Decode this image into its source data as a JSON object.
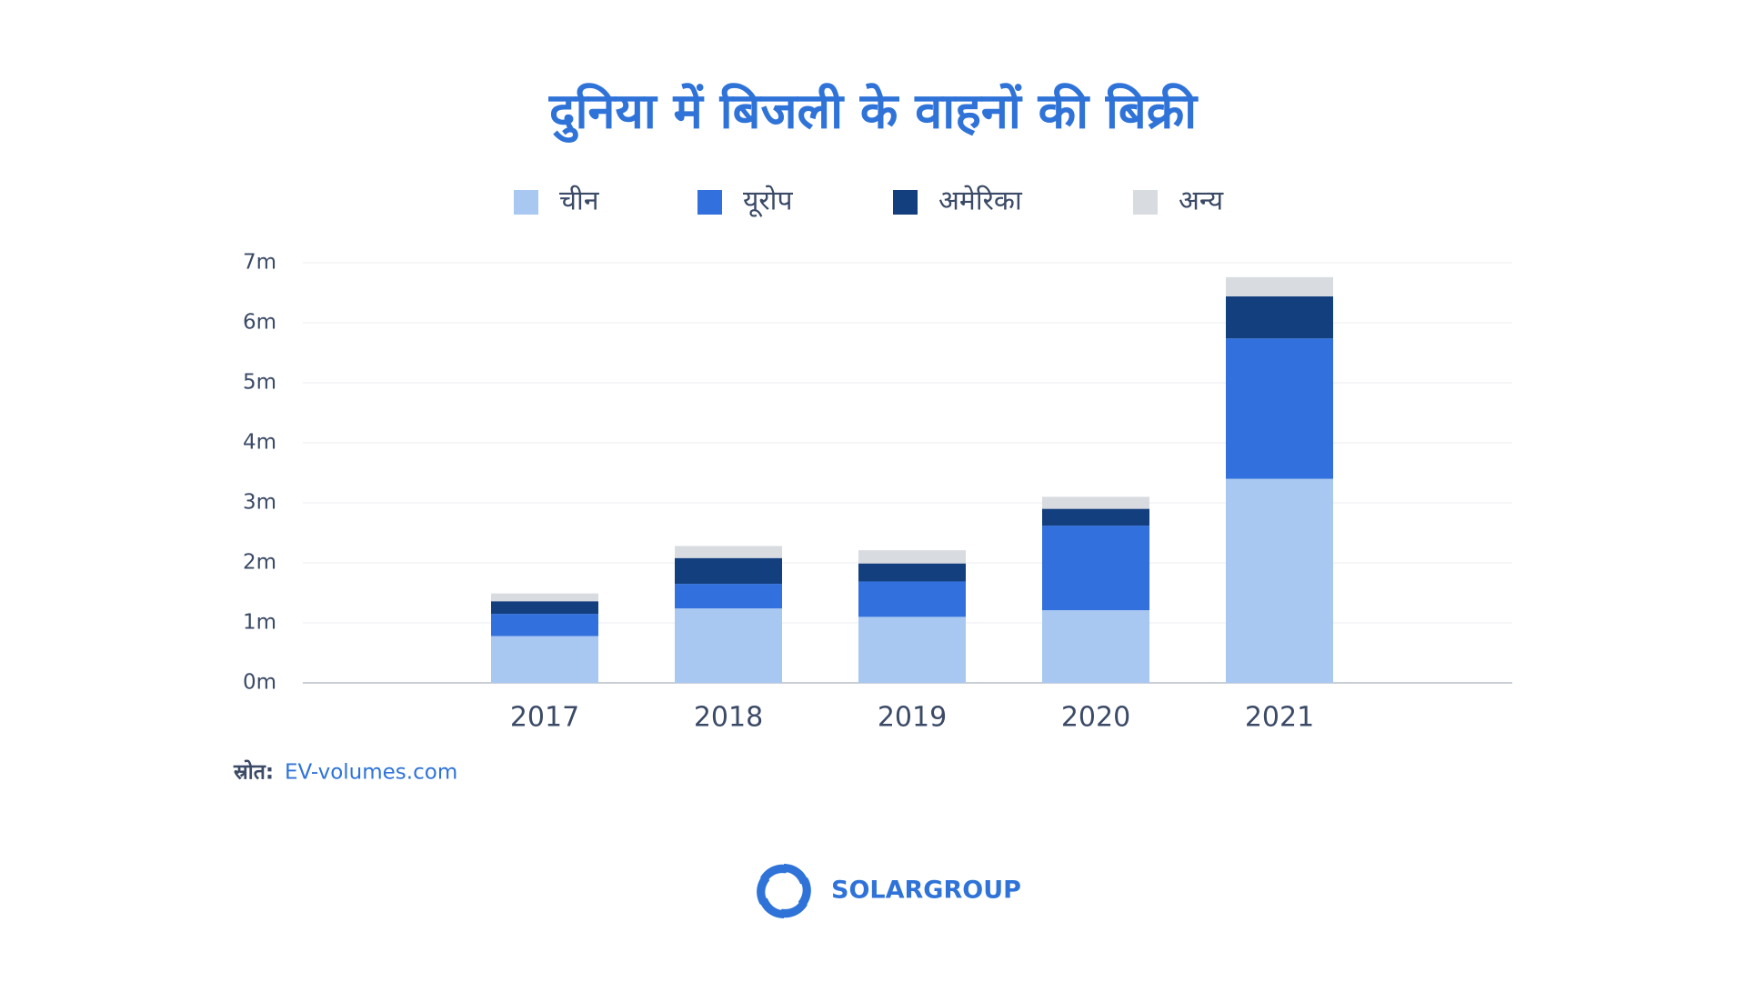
{
  "chart_data": {
    "type": "bar",
    "stacked": true,
    "title": "दुनिया में बिजली के वाहनों की बिक्री",
    "categories": [
      "2017",
      "2018",
      "2019",
      "2020",
      "2021"
    ],
    "series": [
      {
        "name": "चीन",
        "color": "#a8c8f2",
        "values": [
          0.78,
          1.24,
          1.1,
          1.21,
          3.4
        ]
      },
      {
        "name": "यूरोप",
        "color": "#3170dd",
        "values": [
          0.37,
          0.41,
          0.59,
          1.41,
          2.34
        ]
      },
      {
        "name": "अमेरिका",
        "color": "#143f7e",
        "values": [
          0.21,
          0.43,
          0.3,
          0.28,
          0.7
        ]
      },
      {
        "name": "अन्य",
        "color": "#d8dbe0",
        "values": [
          0.13,
          0.2,
          0.22,
          0.2,
          0.32
        ]
      }
    ],
    "ylim": [
      0,
      7
    ],
    "yticks": [
      {
        "value": 0,
        "label": "0m"
      },
      {
        "value": 1,
        "label": "1m"
      },
      {
        "value": 2,
        "label": "2m"
      },
      {
        "value": 3,
        "label": "3m"
      },
      {
        "value": 4,
        "label": "4m"
      },
      {
        "value": 5,
        "label": "5m"
      },
      {
        "value": 6,
        "label": "6m"
      },
      {
        "value": 7,
        "label": "7m"
      }
    ],
    "grid": true,
    "legend": "top"
  },
  "footer": {
    "source_label": "स्रोत:",
    "source": "EV-volumes.com",
    "brand": "SOLARGROUP"
  }
}
